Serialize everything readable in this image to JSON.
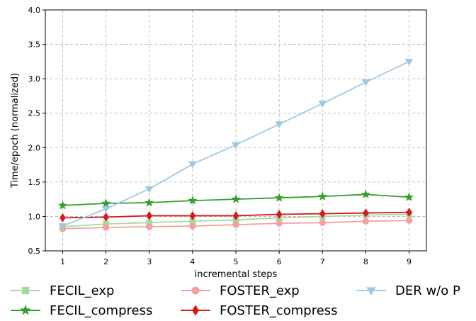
{
  "chart_data": {
    "type": "line",
    "xlabel": "incremental steps",
    "ylabel": "Time/epoch (normalized)",
    "x": [
      1,
      2,
      3,
      4,
      5,
      6,
      7,
      8,
      9
    ],
    "xticks": [
      "1",
      "2",
      "3",
      "4",
      "5",
      "6",
      "7",
      "8",
      "9"
    ],
    "xlim": [
      0.6,
      9.4
    ],
    "ylim": [
      0.5,
      4.0
    ],
    "yticks": [
      "0.5",
      "1.0",
      "1.5",
      "2.0",
      "2.5",
      "3.0",
      "3.5",
      "4.0"
    ],
    "grid": true,
    "legend_placement": "bottom",
    "series": [
      {
        "name": "FECIL_exp",
        "color": "#a6dba0",
        "marker": "square",
        "values": [
          0.85,
          0.89,
          0.91,
          0.93,
          0.95,
          0.98,
          1.0,
          1.02,
          1.03
        ]
      },
      {
        "name": "FECIL_compress",
        "color": "#33a02c",
        "marker": "star",
        "values": [
          1.16,
          1.19,
          1.2,
          1.23,
          1.25,
          1.27,
          1.29,
          1.32,
          1.28
        ]
      },
      {
        "name": "FOSTER_exp",
        "color": "#f4a09c",
        "marker": "circle",
        "values": [
          0.82,
          0.84,
          0.85,
          0.86,
          0.88,
          0.9,
          0.91,
          0.93,
          0.94
        ]
      },
      {
        "name": "FOSTER_compress",
        "color": "#d7191c",
        "marker": "diamond",
        "values": [
          0.98,
          0.99,
          1.01,
          1.01,
          1.01,
          1.03,
          1.04,
          1.05,
          1.06
        ]
      },
      {
        "name": "DER w/o P",
        "color": "#9ecae1",
        "marker": "triangle-down",
        "values": [
          0.86,
          1.11,
          1.4,
          1.76,
          2.04,
          2.34,
          2.64,
          2.95,
          3.25
        ]
      }
    ]
  }
}
